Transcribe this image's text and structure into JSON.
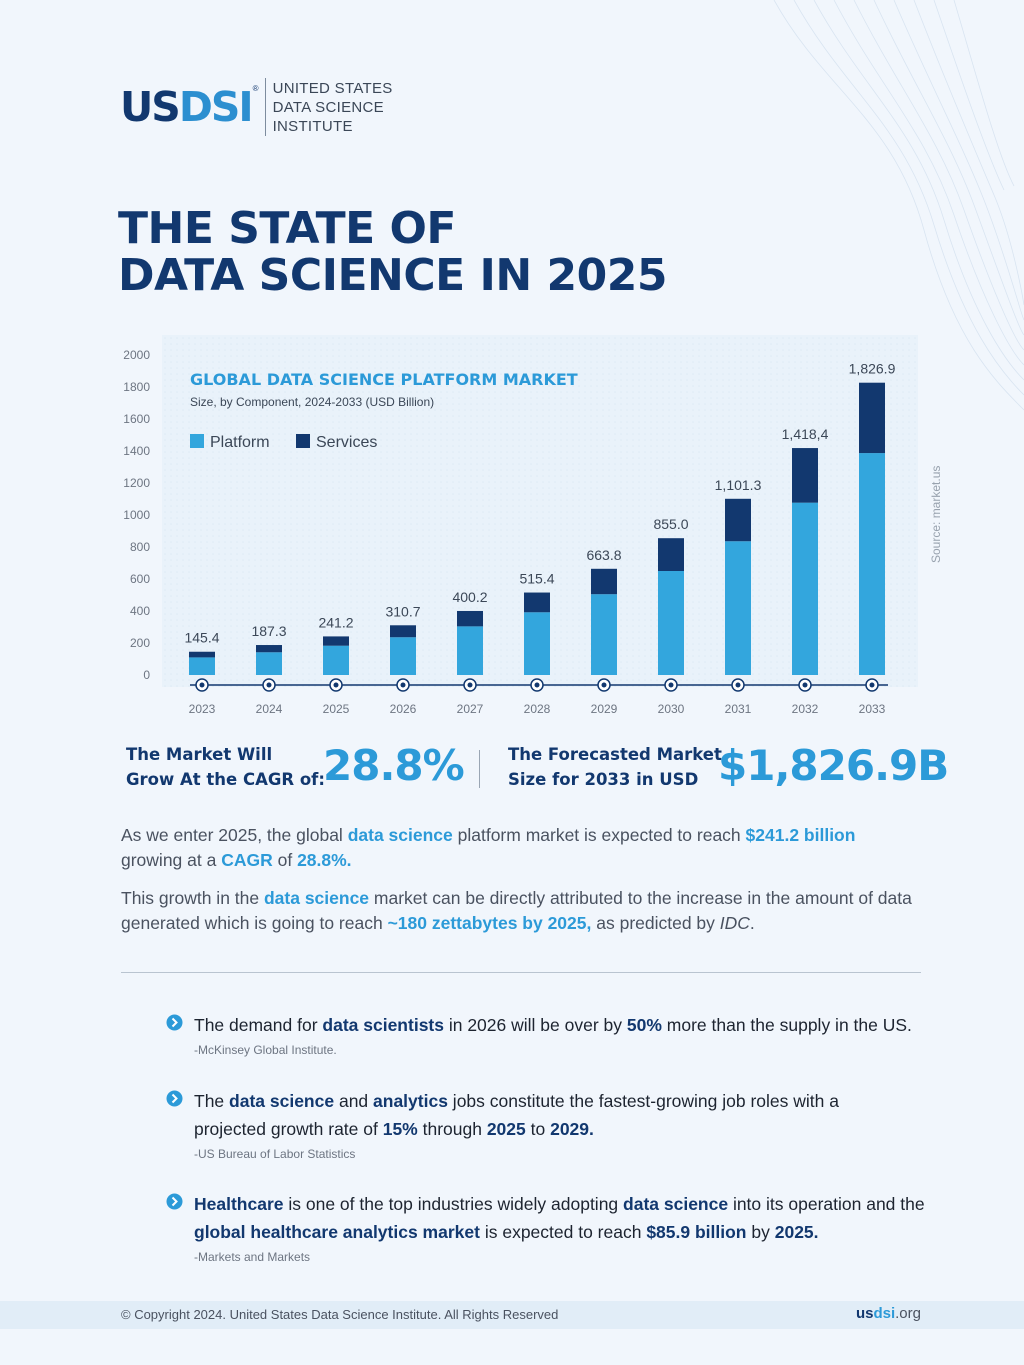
{
  "brand": {
    "mark_us": "US",
    "mark_dsi": "DSI",
    "reg": "®",
    "line1": "UNITED STATES",
    "line2": "DATA SCIENCE",
    "line3": "INSTITUTE"
  },
  "page": {
    "title_line1": "THE STATE OF",
    "title_line2": "DATA SCIENCE IN 2025"
  },
  "colors": {
    "platform": "#33a6dd",
    "services": "#12386f",
    "accent": "#2c9ad8",
    "navy": "#12386f"
  },
  "chart_data": {
    "type": "bar",
    "stacked": true,
    "title": "GLOBAL DATA SCIENCE PLATFORM MARKET",
    "subtitle": "Size, by Component, 2024-2033 (USD Billion)",
    "source": "Source: market.us",
    "categories": [
      "2023",
      "2024",
      "2025",
      "2026",
      "2027",
      "2028",
      "2029",
      "2030",
      "2031",
      "2032",
      "2033"
    ],
    "totals": [
      145.4,
      187.3,
      241.2,
      310.7,
      400.2,
      515.4,
      663.8,
      855.0,
      1101.3,
      1418.4,
      1826.9
    ],
    "total_labels": [
      "145.4",
      "187.3",
      "241.2",
      "310.7",
      "400.2",
      "515.4",
      "663.8",
      "855.0",
      "1,101.3",
      "1,418,4",
      "1,826.9"
    ],
    "series": [
      {
        "name": "Platform",
        "values": [
          110,
          142,
          183,
          236,
          304,
          392,
          505,
          650,
          836,
          1077,
          1387
        ]
      },
      {
        "name": "Services",
        "values": [
          35.4,
          45.3,
          58.2,
          74.7,
          96.2,
          123.4,
          158.8,
          205.0,
          265.3,
          341.4,
          439.9
        ]
      }
    ],
    "yticks": [
      "0",
      "200",
      "400",
      "600",
      "800",
      "1000",
      "1200",
      "1400",
      "1600",
      "1800",
      "2000"
    ],
    "ylim": [
      0,
      2000
    ],
    "legend_position": "top-left"
  },
  "stats": {
    "cagr_label_1": "The Market Will",
    "cagr_label_2": "Grow At the CAGR of:",
    "cagr_value": "28.8%",
    "forecast_label_1": "The Forecasted Market",
    "forecast_label_2": "Size for 2033 in USD",
    "forecast_value": "$1,826.9B"
  },
  "para1": {
    "t1": "As we enter 2025, the global ",
    "h1": "data science",
    "t2": " platform market is expected to reach ",
    "h2": "$241.2 billion",
    "t3": "growing at a ",
    "h3": "CAGR",
    "t4": " of ",
    "h4": "28.8%."
  },
  "para2": {
    "t1": "This growth in the ",
    "h1": "data science",
    "t2": " market can be directly attributed to the increase in the amount of data generated which is going to reach ",
    "h2": "~180 zettabytes by 2025,",
    "t3": " as predicted by ",
    "em": "IDC",
    "t4": "."
  },
  "bullets": [
    {
      "t1": "The demand for ",
      "b1": "data scientists",
      "t2": " in 2026 will be over by ",
      "b2": "50%",
      "t3": " more than the supply in the US.",
      "source": "-McKinsey Global Institute."
    },
    {
      "t1": "The ",
      "b1": "data science",
      "t2": " and ",
      "b2": "analytics",
      "t3": " jobs constitute the fastest-growing job roles with a projected growth rate of ",
      "b3": "15%",
      "t4": " through ",
      "b4": "2025",
      "t5": " to ",
      "b5": "2029.",
      "source": "-US Bureau of Labor Statistics"
    },
    {
      "b1": "Healthcare",
      "t1": " is one of the top industries widely adopting ",
      "b2": "data science",
      "t2": " into its operation and the ",
      "b3": "global healthcare analytics market",
      "t3": " is expected to reach ",
      "b4": "$85.9 billion",
      "t4": " by ",
      "b5": "2025.",
      "source": "-Markets and Markets"
    }
  ],
  "footer": {
    "copyright": "© Copyright 2024. United States Data Science Institute. All Rights Reserved",
    "url_a": "us",
    "url_b": "dsi",
    "url_c": ".org"
  }
}
